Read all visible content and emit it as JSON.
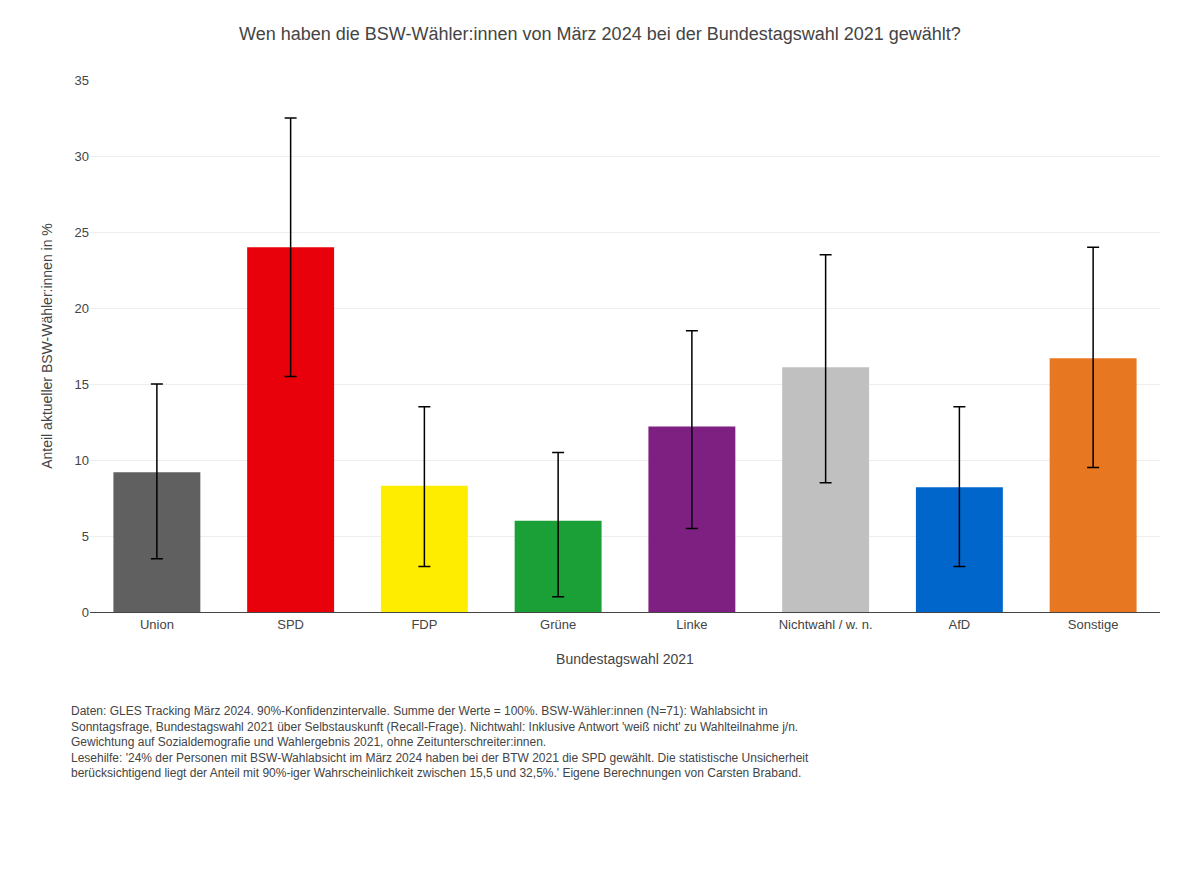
{
  "chart_data": {
    "type": "bar",
    "title": "Wen haben die BSW-Wähler:innen von März 2024 bei der Bundestagswahl 2021 gewählt?",
    "categories": [
      "Union",
      "SPD",
      "FDP",
      "Grüne",
      "Linke",
      "Nichtwahl / w. n.",
      "AfD",
      "Sonstige"
    ],
    "values": [
      9.2,
      24.0,
      8.3,
      6.0,
      12.2,
      16.1,
      8.2,
      16.7
    ],
    "ci_lower": [
      3.5,
      15.5,
      3.0,
      1.0,
      5.5,
      8.5,
      3.0,
      9.5
    ],
    "ci_upper": [
      15.0,
      32.5,
      13.5,
      10.5,
      18.5,
      23.5,
      13.5,
      24.0
    ],
    "colors": [
      "#606060",
      "#E8000A",
      "#FFED00",
      "#1AA037",
      "#7D2082",
      "#C0C0C0",
      "#0066CC",
      "#E87722"
    ],
    "xlabel": "Bundestagswahl 2021",
    "ylabel": "Anteil aktueller BSW-Wähler:innen in %",
    "ylim": [
      0,
      35
    ],
    "yticks": [
      0,
      5,
      10,
      15,
      20,
      25,
      30,
      35
    ],
    "grid": true,
    "caption": [
      "Daten: GLES Tracking März 2024. 90%-Konfidenzintervalle. Summe der Werte = 100%. BSW-Wähler:innen (N=71): Wahlabsicht in",
      "Sonntagsfrage, Bundestagswahl 2021 über Selbstauskunft (Recall-Frage). Nichtwahl: Inklusive Antwort 'weiß nicht' zu Wahlteilnahme j/n.",
      "Gewichtung auf Sozialdemografie und Wahlergebnis 2021, ohne Zeitunterschreiter:innen.",
      "Lesehilfe: '24% der Personen mit BSW-Wahlabsicht im März 2024 haben bei der BTW 2021 die SPD gewählt. Die statistische Unsicherheit",
      "berücksichtigend liegt der Anteil mit 90%-iger Wahrscheinlichkeit zwischen 15,5 und 32,5%.' Eigene Berechnungen von Carsten Braband."
    ]
  }
}
